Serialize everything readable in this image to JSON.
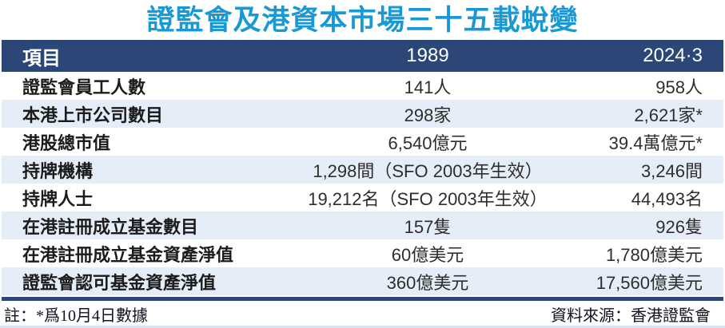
{
  "title": "證監會及港資本市場三十五載蛻變",
  "colors": {
    "title_blue": "#1899D6",
    "header_navy": "#2A4777",
    "row_alt_blue": "#E5EDF8",
    "bottom_strip_blue": "#D8E4F4"
  },
  "table": {
    "headers": [
      "項目",
      "1989",
      "2024·3"
    ],
    "rows": [
      {
        "label": "證監會員工人數",
        "v1989": "141人",
        "v2024": "958人"
      },
      {
        "label": "本港上市公司數目",
        "v1989": "298家",
        "v2024": "2,621家*"
      },
      {
        "label": "港股總市值",
        "v1989": "6,540億元",
        "v2024": "39.4萬億元*"
      },
      {
        "label": "持牌機構",
        "v1989": "1,298間（SFO 2003年生效）",
        "v2024": "3,246間"
      },
      {
        "label": "持牌人士",
        "v1989": "19,212名（SFO 2003年生效）",
        "v2024": "44,493名"
      },
      {
        "label": "在港註冊成立基金數目",
        "v1989": "157隻",
        "v2024": "926隻"
      },
      {
        "label": "在港註冊成立基金資產淨值",
        "v1989": "60億美元",
        "v2024": "1,780億美元"
      },
      {
        "label": "證監會認可基金資產淨值",
        "v1989": "360億美元",
        "v2024": "17,560億美元"
      }
    ]
  },
  "footer": {
    "note": "註：*爲10月4日數據",
    "source": "資料來源：香港證監會"
  },
  "chart_data": {
    "type": "table",
    "title": "證監會及港資本市場三十五載蛻變",
    "columns": [
      "項目",
      "1989",
      "2024·3"
    ],
    "rows": [
      [
        "證監會員工人數",
        "141人",
        "958人"
      ],
      [
        "本港上市公司數目",
        "298家",
        "2,621家*"
      ],
      [
        "港股總市值",
        "6,540億元",
        "39.4萬億元*"
      ],
      [
        "持牌機構",
        "1,298間（SFO 2003年生效）",
        "3,246間"
      ],
      [
        "持牌人士",
        "19,212名（SFO 2003年生效）",
        "44,493名"
      ],
      [
        "在港註冊成立基金數目",
        "157隻",
        "926隻"
      ],
      [
        "在港註冊成立基金資產淨值",
        "60億美元",
        "1,780億美元"
      ],
      [
        "證監會認可基金資產淨值",
        "360億美元",
        "17,560億美元"
      ]
    ],
    "footnote": "註：*爲10月4日數據",
    "source": "資料來源：香港證監會"
  }
}
